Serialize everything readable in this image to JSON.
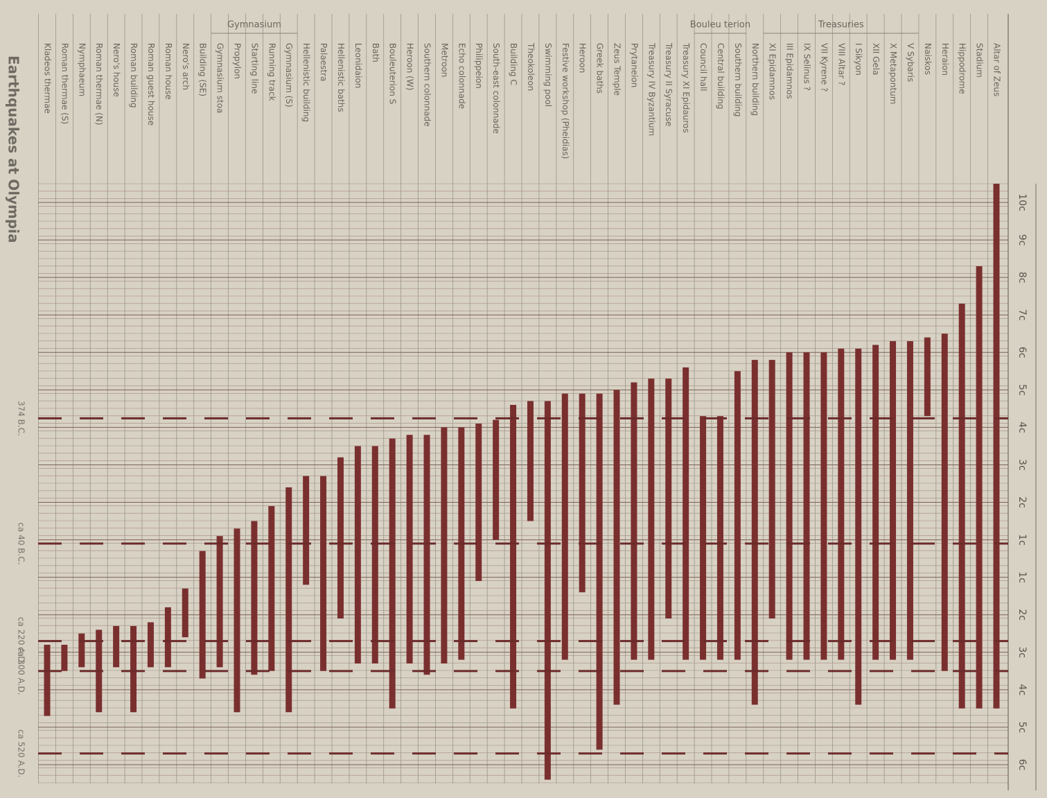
{
  "chart_data": {
    "type": "range",
    "title": "Earthquakes at Olympia",
    "group_labels": [
      "Gymnasium",
      "Bouleu terion",
      "Treasuries"
    ],
    "categories": [
      "Kladeos thermae",
      "Roman thermae (S)",
      "Nymphaeum",
      "Roman thermae (N)",
      "Nero's house",
      "Roman building",
      "Roman guest house",
      "Roman house",
      "Nero's arch",
      "Building (SE)",
      "Gymnasium stoa",
      "Propylon",
      "Starting line",
      "Running track",
      "Gymnasium (S)",
      "Hellenistic building",
      "Palaestra",
      "Hellenistic baths",
      "Leonidaion",
      "Bath",
      "Bouleuterion S",
      "Heroon (W)",
      "Southern colonnade",
      "Metroon",
      "Echo colonnade",
      "Philippeion",
      "South-east colonnade",
      "Building C",
      "Theokoleon",
      "Swimming pool",
      "Festive workshop (Pheidias)",
      "Heroon",
      "Greek baths",
      "Zeus Temple",
      "Prytaneion",
      "Treasury IV Byzantium",
      "Treasury II Syracuse",
      "Treasury XI Epidauros",
      "Council hall",
      "Central building",
      "Southern building",
      "Northern building",
      "XI Epidamnos",
      "III Epidamnos",
      "IX Selinus ?",
      "VII Kyrene ?",
      "VIII Altar ?",
      "I Sikyon",
      "XII Gela",
      "X Metapontum",
      "V Sybaris",
      "Naiskos",
      "Heraion",
      "Hippodrome",
      "Stadium",
      "Altar of Zeus"
    ],
    "values": [
      [
        230,
        420
      ],
      [
        230,
        300
      ],
      [
        200,
        290
      ],
      [
        190,
        410
      ],
      [
        180,
        290
      ],
      [
        180,
        410
      ],
      [
        170,
        290
      ],
      [
        130,
        290
      ],
      [
        80,
        210
      ],
      [
        -20,
        320
      ],
      [
        -60,
        290
      ],
      [
        -80,
        410
      ],
      [
        -100,
        310
      ],
      [
        -140,
        300
      ],
      [
        -190,
        410
      ],
      [
        -220,
        70
      ],
      [
        -220,
        300
      ],
      [
        -270,
        160
      ],
      [
        -300,
        280
      ],
      [
        -300,
        280
      ],
      [
        -320,
        400
      ],
      [
        -330,
        280
      ],
      [
        -330,
        310
      ],
      [
        -350,
        280
      ],
      [
        -350,
        270
      ],
      [
        -360,
        60
      ],
      [
        -370,
        -50
      ],
      [
        -410,
        400
      ],
      [
        -420,
        -100
      ],
      [
        -420,
        590
      ],
      [
        -440,
        270
      ],
      [
        -440,
        90
      ],
      [
        -440,
        510
      ],
      [
        -450,
        390
      ],
      [
        -470,
        270
      ],
      [
        -480,
        270
      ],
      [
        -480,
        160
      ],
      [
        -510,
        270
      ],
      [
        -380,
        270
      ],
      [
        -380,
        270
      ],
      [
        -500,
        270
      ],
      [
        -530,
        390
      ],
      [
        -530,
        160
      ],
      [
        -550,
        270
      ],
      [
        -550,
        270
      ],
      [
        -550,
        270
      ],
      [
        -560,
        270
      ],
      [
        -560,
        390
      ],
      [
        -570,
        270
      ],
      [
        -580,
        270
      ],
      [
        -580,
        270
      ],
      [
        -590,
        -380
      ],
      [
        -600,
        300
      ],
      [
        -680,
        400
      ],
      [
        -780,
        400
      ],
      [
        -1000,
        400
      ]
    ],
    "color": "#7a2f2f",
    "ylim": [
      -1000,
      600
    ],
    "yticks": [
      {
        "value": -950,
        "label": "10c"
      },
      {
        "value": -850,
        "label": "9c"
      },
      {
        "value": -750,
        "label": "8c"
      },
      {
        "value": -650,
        "label": "7c"
      },
      {
        "value": -550,
        "label": "6c"
      },
      {
        "value": -450,
        "label": "5c"
      },
      {
        "value": -350,
        "label": "4c"
      },
      {
        "value": -250,
        "label": "3c"
      },
      {
        "value": -150,
        "label": "2c"
      },
      {
        "value": -50,
        "label": "1c"
      },
      {
        "value": 50,
        "label": "1c"
      },
      {
        "value": 150,
        "label": "2c"
      },
      {
        "value": 250,
        "label": "3c"
      },
      {
        "value": 350,
        "label": "4c"
      },
      {
        "value": 450,
        "label": "5c"
      },
      {
        "value": 550,
        "label": "6c"
      }
    ],
    "earthquakes": [
      {
        "value": -374,
        "label": "374 B.C."
      },
      {
        "value": -40,
        "label": "ca 40 B.C."
      },
      {
        "value": 220,
        "label": "ca 220 A.D."
      },
      {
        "value": 300,
        "label": "ca 300 A.D."
      },
      {
        "value": 520,
        "label": "ca 520 A.D."
      }
    ],
    "grid": true
  }
}
